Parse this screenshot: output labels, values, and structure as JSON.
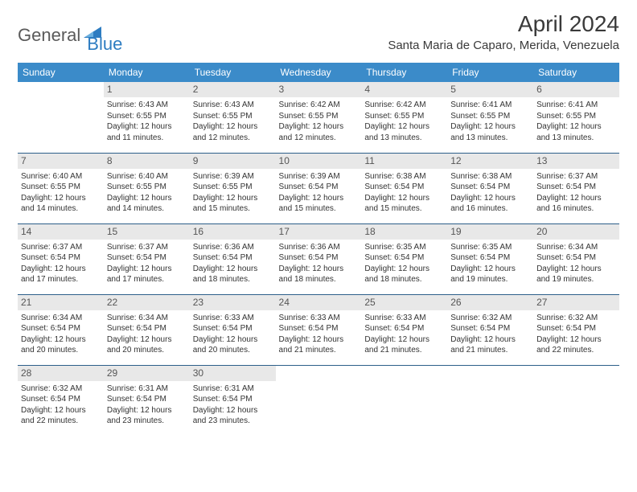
{
  "logo": {
    "general": "General",
    "blue": "Blue"
  },
  "title": "April 2024",
  "location": "Santa Maria de Caparo, Merida, Venezuela",
  "colors": {
    "header_bg": "#3b8bc9",
    "header_text": "#ffffff",
    "border": "#2d5f8a",
    "daynum_bg": "#e8e8e8",
    "daynum_text": "#555555",
    "body_text": "#333333",
    "logo_gray": "#5a5a5a",
    "logo_blue": "#2d7cc1"
  },
  "weekdays": [
    "Sunday",
    "Monday",
    "Tuesday",
    "Wednesday",
    "Thursday",
    "Friday",
    "Saturday"
  ],
  "weeks": [
    [
      null,
      {
        "n": "1",
        "sr": "Sunrise: 6:43 AM",
        "ss": "Sunset: 6:55 PM",
        "d1": "Daylight: 12 hours",
        "d2": "and 11 minutes."
      },
      {
        "n": "2",
        "sr": "Sunrise: 6:43 AM",
        "ss": "Sunset: 6:55 PM",
        "d1": "Daylight: 12 hours",
        "d2": "and 12 minutes."
      },
      {
        "n": "3",
        "sr": "Sunrise: 6:42 AM",
        "ss": "Sunset: 6:55 PM",
        "d1": "Daylight: 12 hours",
        "d2": "and 12 minutes."
      },
      {
        "n": "4",
        "sr": "Sunrise: 6:42 AM",
        "ss": "Sunset: 6:55 PM",
        "d1": "Daylight: 12 hours",
        "d2": "and 13 minutes."
      },
      {
        "n": "5",
        "sr": "Sunrise: 6:41 AM",
        "ss": "Sunset: 6:55 PM",
        "d1": "Daylight: 12 hours",
        "d2": "and 13 minutes."
      },
      {
        "n": "6",
        "sr": "Sunrise: 6:41 AM",
        "ss": "Sunset: 6:55 PM",
        "d1": "Daylight: 12 hours",
        "d2": "and 13 minutes."
      }
    ],
    [
      {
        "n": "7",
        "sr": "Sunrise: 6:40 AM",
        "ss": "Sunset: 6:55 PM",
        "d1": "Daylight: 12 hours",
        "d2": "and 14 minutes."
      },
      {
        "n": "8",
        "sr": "Sunrise: 6:40 AM",
        "ss": "Sunset: 6:55 PM",
        "d1": "Daylight: 12 hours",
        "d2": "and 14 minutes."
      },
      {
        "n": "9",
        "sr": "Sunrise: 6:39 AM",
        "ss": "Sunset: 6:55 PM",
        "d1": "Daylight: 12 hours",
        "d2": "and 15 minutes."
      },
      {
        "n": "10",
        "sr": "Sunrise: 6:39 AM",
        "ss": "Sunset: 6:54 PM",
        "d1": "Daylight: 12 hours",
        "d2": "and 15 minutes."
      },
      {
        "n": "11",
        "sr": "Sunrise: 6:38 AM",
        "ss": "Sunset: 6:54 PM",
        "d1": "Daylight: 12 hours",
        "d2": "and 15 minutes."
      },
      {
        "n": "12",
        "sr": "Sunrise: 6:38 AM",
        "ss": "Sunset: 6:54 PM",
        "d1": "Daylight: 12 hours",
        "d2": "and 16 minutes."
      },
      {
        "n": "13",
        "sr": "Sunrise: 6:37 AM",
        "ss": "Sunset: 6:54 PM",
        "d1": "Daylight: 12 hours",
        "d2": "and 16 minutes."
      }
    ],
    [
      {
        "n": "14",
        "sr": "Sunrise: 6:37 AM",
        "ss": "Sunset: 6:54 PM",
        "d1": "Daylight: 12 hours",
        "d2": "and 17 minutes."
      },
      {
        "n": "15",
        "sr": "Sunrise: 6:37 AM",
        "ss": "Sunset: 6:54 PM",
        "d1": "Daylight: 12 hours",
        "d2": "and 17 minutes."
      },
      {
        "n": "16",
        "sr": "Sunrise: 6:36 AM",
        "ss": "Sunset: 6:54 PM",
        "d1": "Daylight: 12 hours",
        "d2": "and 18 minutes."
      },
      {
        "n": "17",
        "sr": "Sunrise: 6:36 AM",
        "ss": "Sunset: 6:54 PM",
        "d1": "Daylight: 12 hours",
        "d2": "and 18 minutes."
      },
      {
        "n": "18",
        "sr": "Sunrise: 6:35 AM",
        "ss": "Sunset: 6:54 PM",
        "d1": "Daylight: 12 hours",
        "d2": "and 18 minutes."
      },
      {
        "n": "19",
        "sr": "Sunrise: 6:35 AM",
        "ss": "Sunset: 6:54 PM",
        "d1": "Daylight: 12 hours",
        "d2": "and 19 minutes."
      },
      {
        "n": "20",
        "sr": "Sunrise: 6:34 AM",
        "ss": "Sunset: 6:54 PM",
        "d1": "Daylight: 12 hours",
        "d2": "and 19 minutes."
      }
    ],
    [
      {
        "n": "21",
        "sr": "Sunrise: 6:34 AM",
        "ss": "Sunset: 6:54 PM",
        "d1": "Daylight: 12 hours",
        "d2": "and 20 minutes."
      },
      {
        "n": "22",
        "sr": "Sunrise: 6:34 AM",
        "ss": "Sunset: 6:54 PM",
        "d1": "Daylight: 12 hours",
        "d2": "and 20 minutes."
      },
      {
        "n": "23",
        "sr": "Sunrise: 6:33 AM",
        "ss": "Sunset: 6:54 PM",
        "d1": "Daylight: 12 hours",
        "d2": "and 20 minutes."
      },
      {
        "n": "24",
        "sr": "Sunrise: 6:33 AM",
        "ss": "Sunset: 6:54 PM",
        "d1": "Daylight: 12 hours",
        "d2": "and 21 minutes."
      },
      {
        "n": "25",
        "sr": "Sunrise: 6:33 AM",
        "ss": "Sunset: 6:54 PM",
        "d1": "Daylight: 12 hours",
        "d2": "and 21 minutes."
      },
      {
        "n": "26",
        "sr": "Sunrise: 6:32 AM",
        "ss": "Sunset: 6:54 PM",
        "d1": "Daylight: 12 hours",
        "d2": "and 21 minutes."
      },
      {
        "n": "27",
        "sr": "Sunrise: 6:32 AM",
        "ss": "Sunset: 6:54 PM",
        "d1": "Daylight: 12 hours",
        "d2": "and 22 minutes."
      }
    ],
    [
      {
        "n": "28",
        "sr": "Sunrise: 6:32 AM",
        "ss": "Sunset: 6:54 PM",
        "d1": "Daylight: 12 hours",
        "d2": "and 22 minutes."
      },
      {
        "n": "29",
        "sr": "Sunrise: 6:31 AM",
        "ss": "Sunset: 6:54 PM",
        "d1": "Daylight: 12 hours",
        "d2": "and 23 minutes."
      },
      {
        "n": "30",
        "sr": "Sunrise: 6:31 AM",
        "ss": "Sunset: 6:54 PM",
        "d1": "Daylight: 12 hours",
        "d2": "and 23 minutes."
      },
      null,
      null,
      null,
      null
    ]
  ]
}
